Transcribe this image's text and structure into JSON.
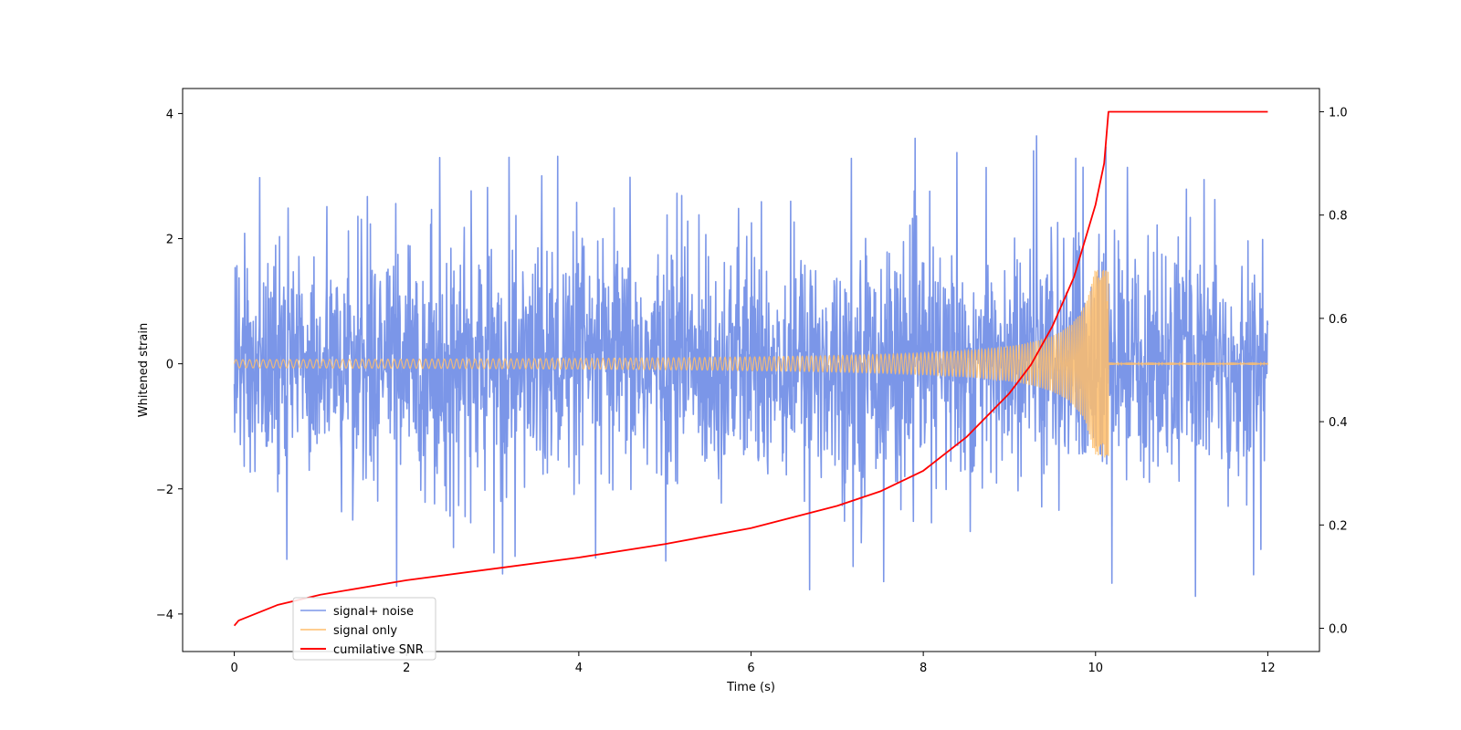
{
  "chart_data": {
    "type": "line",
    "title": "",
    "xlabel": "Time (s)",
    "ylabel": "Whitened strain",
    "y2label": "",
    "xlim": [
      -0.6,
      12.6
    ],
    "ylim": [
      -4.6,
      4.4
    ],
    "y2lim": [
      -0.045,
      1.045
    ],
    "xticks": [
      0,
      2,
      4,
      6,
      8,
      10,
      12
    ],
    "yticks": [
      -4,
      -2,
      0,
      2,
      4
    ],
    "y2ticks": [
      0.0,
      0.2,
      0.4,
      0.6,
      0.8,
      1.0
    ],
    "ytick_labels": [
      "−4",
      "−2",
      "0",
      "2",
      "4"
    ],
    "y2tick_labels": [
      "0.0",
      "0.2",
      "0.4",
      "0.6",
      "0.8",
      "1.0"
    ],
    "grid": false,
    "legend_position": "lower-left",
    "series": [
      {
        "name": "signal+ noise",
        "color": "#7b96e8",
        "axis": "left",
        "kind": "noise",
        "t_range": [
          0,
          12
        ],
        "envelope": [
          [
            0,
            3.2
          ],
          [
            0.5,
            3.0
          ],
          [
            2.5,
            3.8
          ],
          [
            5,
            3.0
          ],
          [
            9.8,
            4.0
          ],
          [
            12,
            3.0
          ]
        ],
        "min_envelope": [
          [
            0,
            -3.5
          ],
          [
            1.7,
            -3.6
          ],
          [
            4.5,
            -3.6
          ],
          [
            10.2,
            -4.15
          ],
          [
            11.6,
            -4.0
          ],
          [
            12,
            -3.0
          ]
        ]
      },
      {
        "name": "signal only",
        "color": "#ffbe6b",
        "axis": "left",
        "kind": "chirp",
        "t_range": [
          0,
          12
        ],
        "merger_time": 10.15,
        "peak_amplitude": 1.5,
        "ringdown_amplitude": 0.02
      },
      {
        "name": "cumilative SNR",
        "color": "#ff0000",
        "axis": "right",
        "kind": "line",
        "x": [
          0,
          0.05,
          0.5,
          1,
          2,
          3,
          4,
          5,
          6,
          7,
          7.5,
          8,
          8.5,
          9,
          9.25,
          9.5,
          9.75,
          10,
          10.1,
          10.15,
          12
        ],
        "y": [
          0.005,
          0.015,
          0.045,
          0.065,
          0.093,
          0.115,
          0.137,
          0.163,
          0.194,
          0.237,
          0.265,
          0.305,
          0.37,
          0.455,
          0.51,
          0.585,
          0.68,
          0.82,
          0.9,
          1.0,
          1.0
        ]
      }
    ]
  }
}
